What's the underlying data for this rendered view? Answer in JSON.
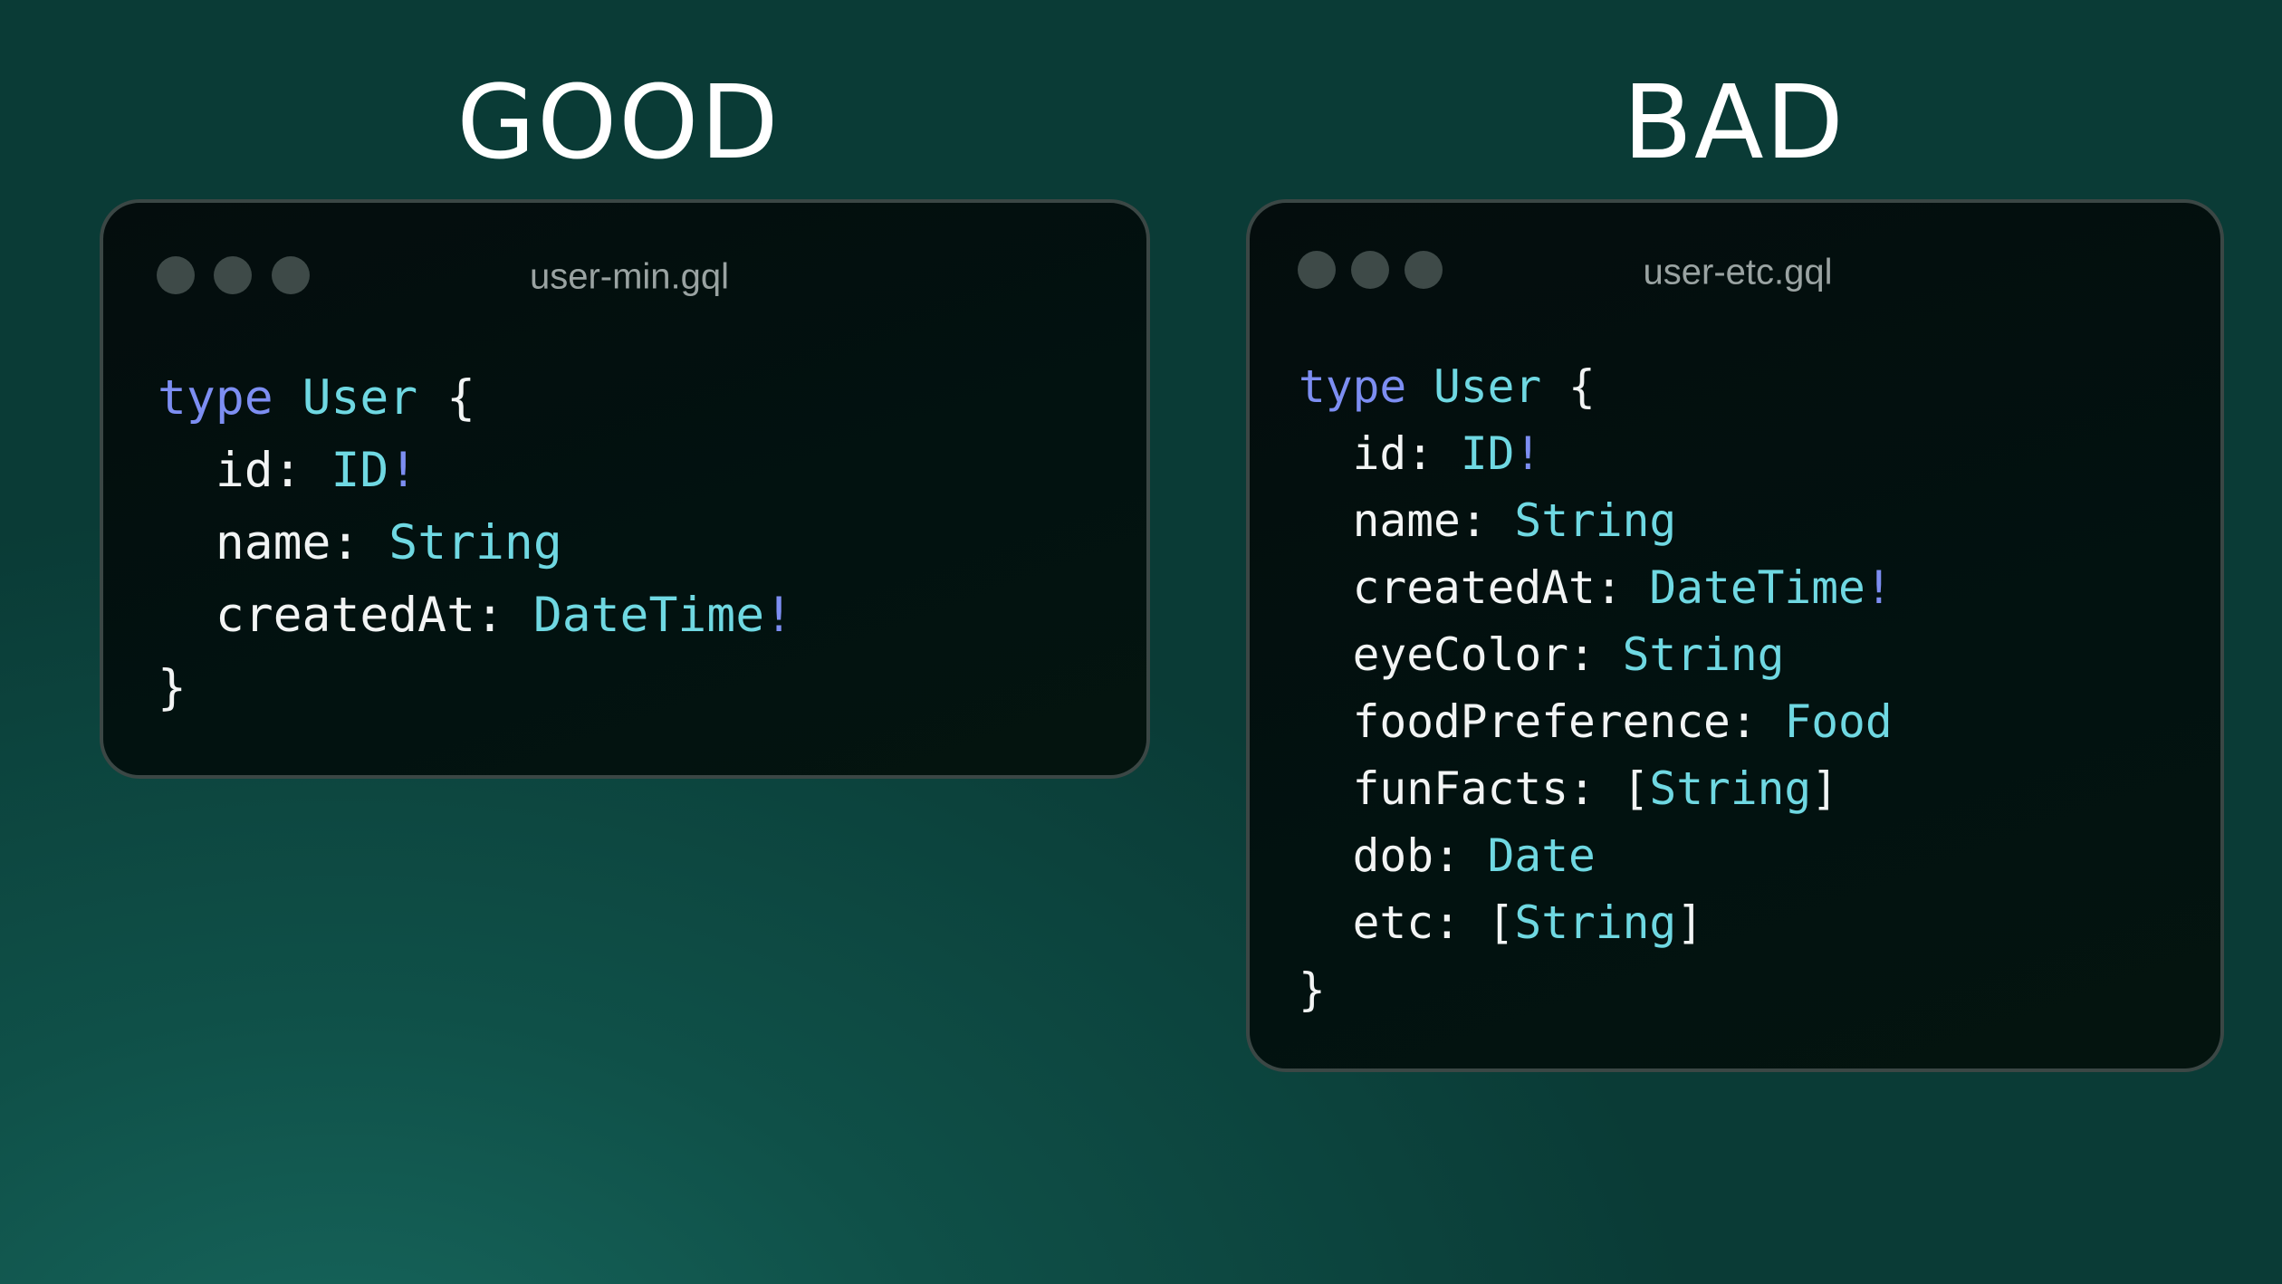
{
  "colors": {
    "keyword": "#7d8ef2",
    "type": "#6fd8e2",
    "text": "#f2f4f4",
    "window_bg": "#030f0e",
    "background": "#0f5048"
  },
  "good": {
    "heading": "GOOD",
    "filename": "user-min.gql",
    "lines": [
      [
        {
          "t": "type",
          "c": "kw"
        },
        {
          "t": " ",
          "c": "pl"
        },
        {
          "t": "User",
          "c": "ty"
        },
        {
          "t": " {",
          "c": "pl"
        }
      ],
      [
        {
          "t": "  id: ",
          "c": "pl"
        },
        {
          "t": "ID",
          "c": "ty"
        },
        {
          "t": "!",
          "c": "bang"
        }
      ],
      [
        {
          "t": "  name: ",
          "c": "pl"
        },
        {
          "t": "String",
          "c": "ty"
        }
      ],
      [
        {
          "t": "  createdAt: ",
          "c": "pl"
        },
        {
          "t": "DateTime",
          "c": "ty"
        },
        {
          "t": "!",
          "c": "bang"
        }
      ],
      [
        {
          "t": "}",
          "c": "pl"
        }
      ]
    ]
  },
  "bad": {
    "heading": "BAD",
    "filename": "user-etc.gql",
    "lines": [
      [
        {
          "t": "type",
          "c": "kw"
        },
        {
          "t": " ",
          "c": "pl"
        },
        {
          "t": "User",
          "c": "ty"
        },
        {
          "t": " {",
          "c": "pl"
        }
      ],
      [
        {
          "t": "  id: ",
          "c": "pl"
        },
        {
          "t": "ID",
          "c": "ty"
        },
        {
          "t": "!",
          "c": "bang"
        }
      ],
      [
        {
          "t": "  name: ",
          "c": "pl"
        },
        {
          "t": "String",
          "c": "ty"
        }
      ],
      [
        {
          "t": "  createdAt: ",
          "c": "pl"
        },
        {
          "t": "DateTime",
          "c": "ty"
        },
        {
          "t": "!",
          "c": "bang"
        }
      ],
      [
        {
          "t": "  eyeColor: ",
          "c": "pl"
        },
        {
          "t": "String",
          "c": "ty"
        }
      ],
      [
        {
          "t": "  foodPreference: ",
          "c": "pl"
        },
        {
          "t": "Food",
          "c": "ty"
        }
      ],
      [
        {
          "t": "  funFacts: [",
          "c": "pl"
        },
        {
          "t": "String",
          "c": "ty"
        },
        {
          "t": "]",
          "c": "pl"
        }
      ],
      [
        {
          "t": "  dob: ",
          "c": "pl"
        },
        {
          "t": "Date",
          "c": "ty"
        }
      ],
      [
        {
          "t": "  etc: [",
          "c": "pl"
        },
        {
          "t": "String",
          "c": "ty"
        },
        {
          "t": "]",
          "c": "pl"
        }
      ],
      [
        {
          "t": "}",
          "c": "pl"
        }
      ]
    ]
  }
}
